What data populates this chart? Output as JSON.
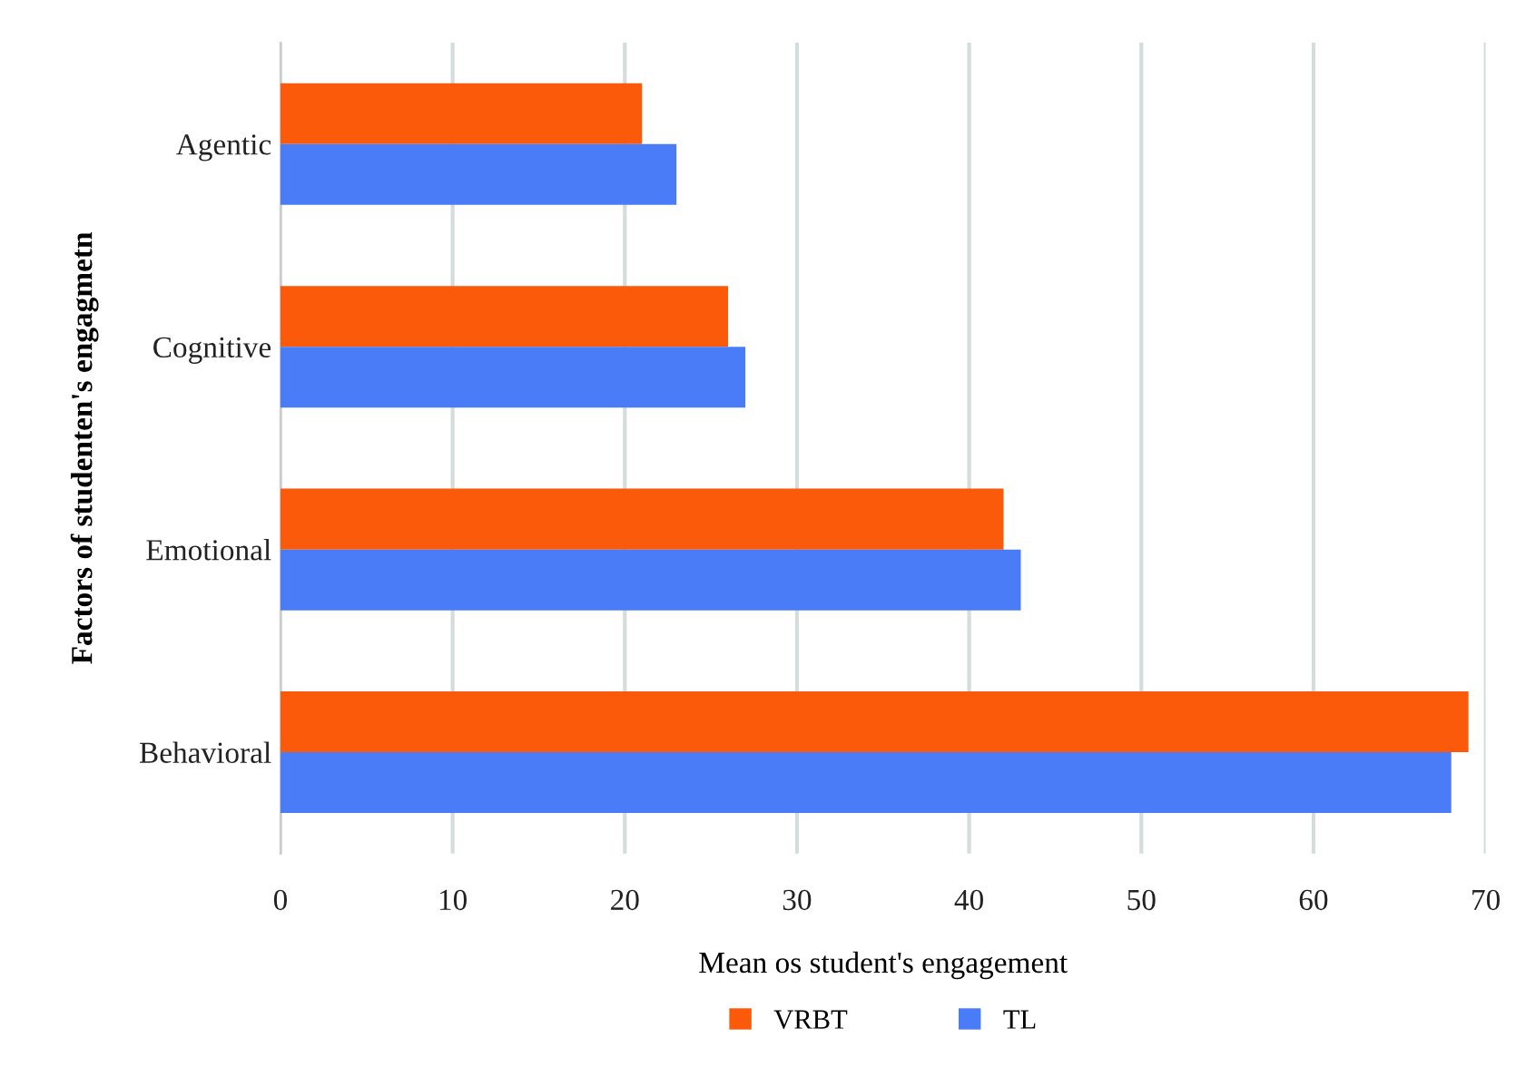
{
  "chart_data": {
    "type": "bar",
    "orientation": "horizontal",
    "xlabel": "Mean os student's engagement",
    "ylabel": "Factors of studenten's engagmetn",
    "categories": [
      "Agentic",
      "Cognitive",
      "Emotional",
      "Behavioral"
    ],
    "series": [
      {
        "name": "VRBT",
        "color": "#fa5a0a",
        "values": [
          21,
          26,
          42,
          69
        ]
      },
      {
        "name": "TL",
        "color": "#4a7cf8",
        "values": [
          23,
          27,
          43,
          68
        ]
      }
    ],
    "xlim": [
      0,
      70
    ],
    "xticks": [
      0,
      10,
      20,
      30,
      40,
      50,
      60,
      70
    ],
    "grid": "x",
    "legend": "bottom"
  }
}
